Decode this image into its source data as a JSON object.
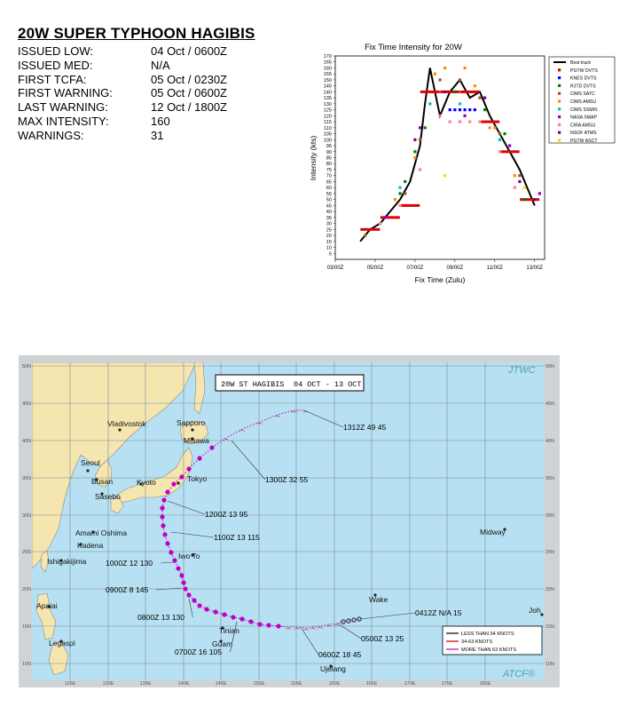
{
  "summary": {
    "title": "20W SUPER TYPHOON HAGIBIS",
    "rows": [
      {
        "label": "ISSUED LOW:",
        "value": "04 Oct / 0600Z"
      },
      {
        "label": "ISSUED MED:",
        "value": "N/A"
      },
      {
        "label": "FIRST TCFA:",
        "value": "05 Oct / 0230Z"
      },
      {
        "label": "FIRST WARNING:",
        "value": "05 Oct / 0600Z"
      },
      {
        "label": "LAST WARNING:",
        "value": "12 Oct / 1800Z"
      },
      {
        "label": "MAX INTENSITY:",
        "value": "160"
      },
      {
        "label": "WARNINGS:",
        "value": "31"
      }
    ]
  },
  "chart_data": {
    "type": "scatter",
    "title": "Fix Time Intensity for 20W",
    "xlabel": "Fix Time (Zulu)",
    "ylabel": "Intensity (kts)",
    "x_ticks": [
      "03/00Z",
      "05/00Z",
      "07/00Z",
      "09/00Z",
      "11/00Z",
      "13/00Z"
    ],
    "xlim": [
      "03/00Z",
      "13/12Z"
    ],
    "ylim": [
      0,
      170
    ],
    "y_tick_step": 5,
    "legend_position": "right",
    "series": [
      {
        "name": "Best track",
        "style": "line",
        "color": "#000000",
        "x": [
          "04/06Z",
          "04/18Z",
          "05/06Z",
          "05/18Z",
          "06/06Z",
          "06/18Z",
          "07/06Z",
          "07/12Z",
          "07/18Z",
          "08/00Z",
          "08/06Z",
          "08/12Z",
          "08/18Z",
          "09/06Z",
          "09/18Z",
          "10/06Z",
          "10/12Z",
          "10/18Z",
          "11/06Z",
          "11/18Z",
          "12/06Z",
          "12/18Z",
          "13/00Z"
        ],
        "y": [
          15,
          25,
          30,
          40,
          50,
          65,
          95,
          130,
          160,
          140,
          120,
          130,
          140,
          150,
          135,
          140,
          130,
          120,
          105,
          90,
          75,
          55,
          45
        ]
      },
      {
        "name": "PGTW DVTS",
        "style": "bar",
        "color": "#e00000",
        "x": [
          "04/18Z",
          "05/18Z",
          "06/18Z",
          "07/18Z",
          "08/18Z",
          "09/18Z",
          "10/18Z",
          "11/18Z",
          "12/18Z"
        ],
        "y": [
          25,
          35,
          45,
          140,
          140,
          140,
          115,
          90,
          50
        ]
      },
      {
        "name": "KNES DVTS",
        "style": "marker",
        "color": "#0000ff",
        "x": [
          "08/18Z",
          "09/00Z",
          "09/06Z",
          "09/12Z",
          "09/18Z",
          "10/00Z"
        ],
        "y": [
          125,
          125,
          125,
          125,
          125,
          125
        ]
      },
      {
        "name": "RJTD DVTS",
        "style": "marker",
        "color": "#008000",
        "x": [
          "05/06Z",
          "06/06Z",
          "06/12Z",
          "07/00Z",
          "07/12Z",
          "09/00Z",
          "10/12Z",
          "11/12Z",
          "12/12Z"
        ],
        "y": [
          30,
          55,
          65,
          90,
          110,
          140,
          125,
          105,
          50
        ]
      },
      {
        "name": "CIMS SATC",
        "style": "marker",
        "color": "#a0522d",
        "x": [
          "04/12Z",
          "05/12Z",
          "06/12Z",
          "07/06Z",
          "08/06Z",
          "09/06Z",
          "10/06Z",
          "11/06Z",
          "12/06Z"
        ],
        "y": [
          20,
          35,
          55,
          100,
          150,
          150,
          135,
          105,
          70
        ]
      },
      {
        "name": "CIMS AMSU",
        "style": "marker",
        "color": "#ff8c00",
        "x": [
          "06/00Z",
          "07/00Z",
          "08/00Z",
          "08/12Z",
          "09/12Z",
          "10/00Z",
          "11/00Z",
          "12/00Z"
        ],
        "y": [
          50,
          85,
          155,
          160,
          160,
          145,
          110,
          70
        ]
      },
      {
        "name": "CIMS SSMIS",
        "style": "marker",
        "color": "#00c0c0",
        "x": [
          "06/06Z",
          "07/18Z",
          "09/06Z",
          "11/06Z"
        ],
        "y": [
          60,
          130,
          130,
          100
        ]
      },
      {
        "name": "NASA SMAP",
        "style": "marker",
        "color": "#9400d3",
        "x": [
          "05/12Z",
          "07/06Z",
          "09/12Z",
          "11/18Z",
          "13/06Z"
        ],
        "y": [
          35,
          110,
          120,
          95,
          55
        ]
      },
      {
        "name": "CIRA AMSU",
        "style": "marker",
        "color": "#ff8080",
        "x": [
          "05/06Z",
          "06/06Z",
          "07/06Z",
          "08/06Z",
          "08/18Z",
          "09/06Z",
          "09/18Z",
          "10/06Z",
          "10/18Z",
          "11/06Z",
          "12/00Z"
        ],
        "y": [
          30,
          45,
          75,
          120,
          115,
          115,
          115,
          115,
          110,
          90,
          60
        ]
      },
      {
        "name": "NSOF ATMS",
        "style": "marker",
        "color": "#800080",
        "x": [
          "07/00Z",
          "08/12Z",
          "10/12Z",
          "12/06Z",
          "13/00Z"
        ],
        "y": [
          100,
          140,
          135,
          65,
          50
        ]
      },
      {
        "name": "PGTW ASCT",
        "style": "marker",
        "color": "#ffd700",
        "x": [
          "08/12Z",
          "12/12Z"
        ],
        "y": [
          70,
          60
        ]
      }
    ]
  },
  "map": {
    "title": "20W ST HAGIBIS",
    "dates": "04 OCT - 13 OCT",
    "logo_top": "JTWC",
    "logo_bottom": "ATCF®",
    "lat_labels": [
      "50N",
      "45N",
      "40N",
      "35N",
      "30N",
      "25N",
      "20N",
      "15N",
      "10N"
    ],
    "lon_labels": [
      "125E",
      "130E",
      "135E",
      "140E",
      "145E",
      "150E",
      "155E",
      "160E",
      "165E",
      "170E",
      "175E",
      "180E"
    ],
    "cities": [
      "Vladivostok",
      "Sapporo",
      "Misawa",
      "Seoul",
      "Busan",
      "Kyoto",
      "Tokyo",
      "Sasebo",
      "Amami Oshima",
      "Kadena",
      "Ishigakijima",
      "Iwo To",
      "Midway",
      "Wake",
      "Apaiai",
      "Legaspi",
      "Tinian",
      "Guam",
      "Ujelang",
      "Joh"
    ],
    "annotations": [
      {
        "time": "1312Z",
        "lat": 49,
        "wind": 45
      },
      {
        "time": "1300Z",
        "lat": 32,
        "wind": 55
      },
      {
        "time": "1200Z",
        "lat": 13,
        "wind": 95
      },
      {
        "time": "1100Z",
        "lat": 13,
        "wind": 115
      },
      {
        "time": "1000Z",
        "lat": 12,
        "wind": 130
      },
      {
        "time": "0900Z",
        "lat": 8,
        "wind": 145
      },
      {
        "time": "0800Z",
        "lat": 13,
        "wind": 130
      },
      {
        "time": "0700Z",
        "lat": 16,
        "wind": 105
      },
      {
        "time": "0600Z",
        "lat": 18,
        "wind": 45
      },
      {
        "time": "0500Z",
        "lat": 13,
        "wind": 25
      },
      {
        "time": "0412Z",
        "lat": "N/A",
        "wind": 15
      }
    ],
    "legend": [
      {
        "label": "LESS THAN 34 KNOTS",
        "color": "#000000"
      },
      {
        "label": "34-63 KNOTS",
        "color": "#c00000"
      },
      {
        "label": "MORE THAN 63 KNOTS",
        "color": "#c000c0"
      }
    ],
    "colors": {
      "ocean": "#b7e1f2",
      "land": "#f5e6b0",
      "frame": "#cfd3d6",
      "track_strong": "#c000c0",
      "track_ts": "#c00000"
    }
  }
}
